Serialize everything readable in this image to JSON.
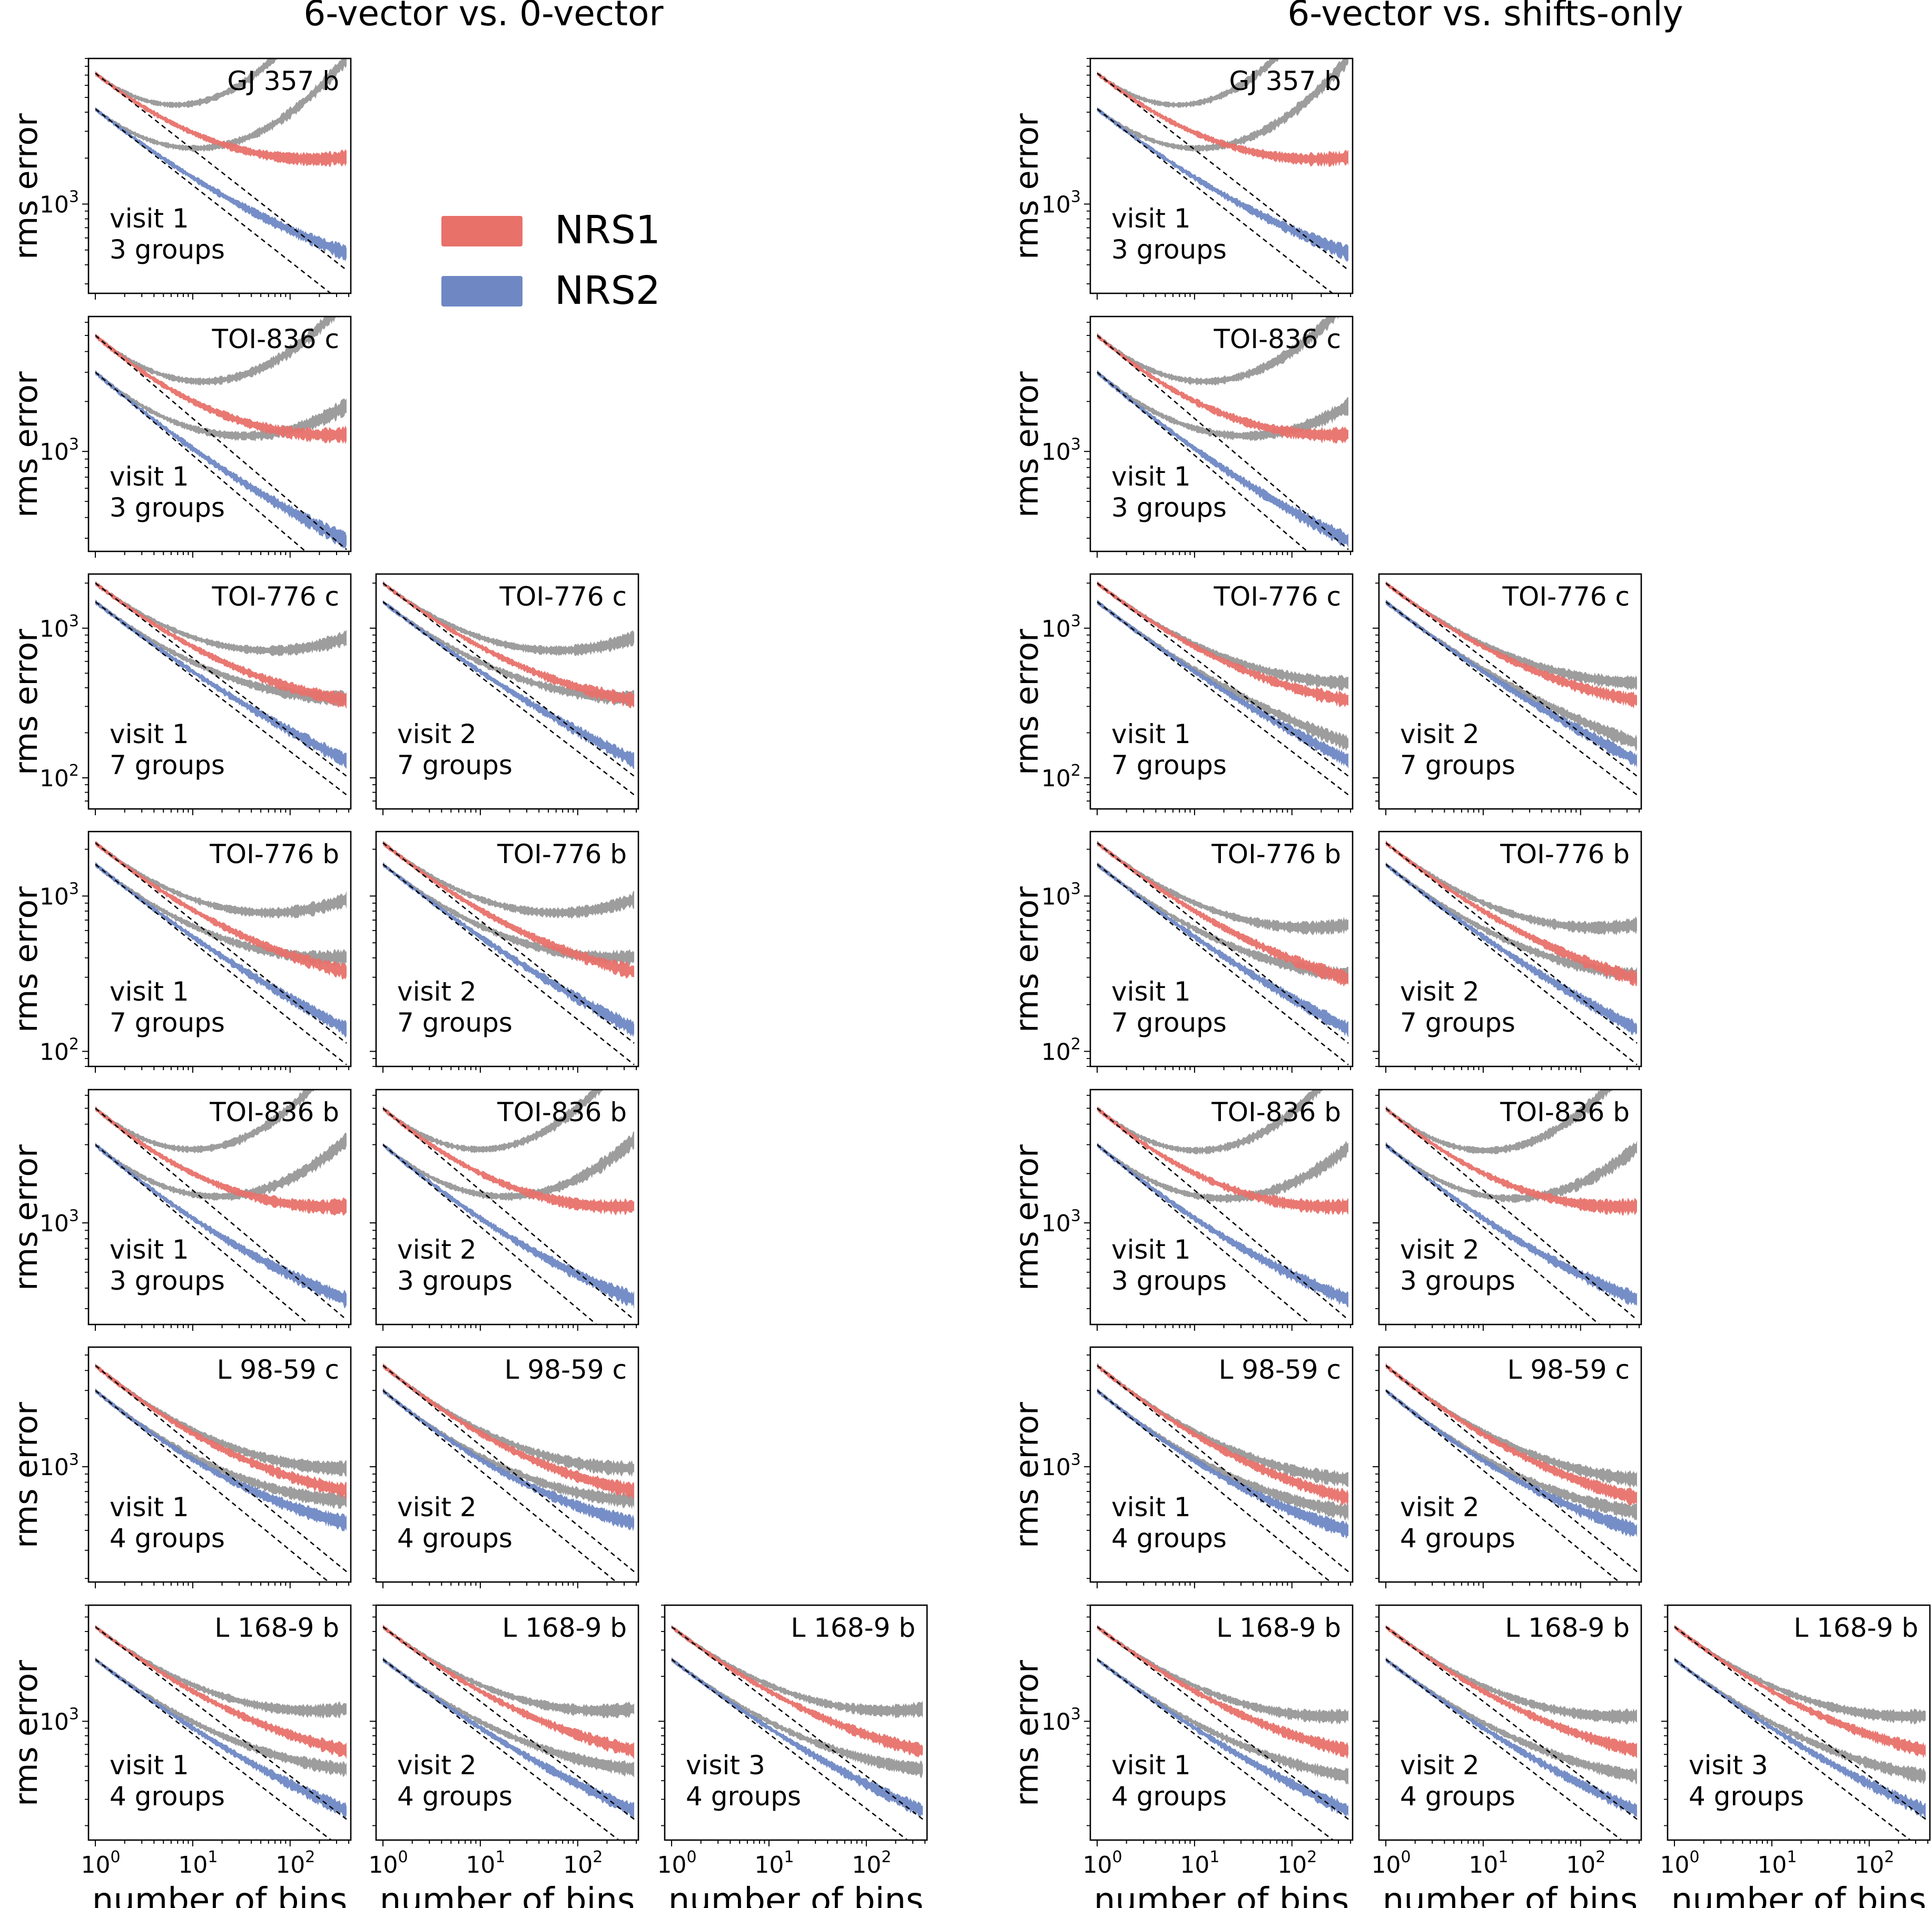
{
  "chart_data": {
    "type": "line",
    "figure_titles": [
      "6-vector vs. 0-vector",
      "6-vector vs. shifts-only"
    ],
    "ylabel": "rms error",
    "xlabel": "number of bins",
    "x_range": [
      1,
      400
    ],
    "x_scale": "log",
    "y_scale": "log",
    "x_ticks": [
      "10",
      "10",
      "10"
    ],
    "x_tick_exponents": [
      "0",
      "1",
      "2"
    ],
    "legend": [
      {
        "name": "NRS1",
        "color": "#e8716a"
      },
      {
        "name": "NRS2",
        "color": "#6f88c4"
      }
    ],
    "comparison_color": "#8c8c8c",
    "series_kind": [
      "rms error (6-vector)",
      "rms error (comparison)",
      "expected white-noise scaling"
    ],
    "rows": [
      {
        "target": "GJ 357 b",
        "y_ticks": [
          {
            "base": "10",
            "exp": "3",
            "value": 1000
          }
        ],
        "ylim": [
          260,
          9000
        ],
        "visits": [
          {
            "visit": "visit 1",
            "groups": "3 groups",
            "nrs1_start": 7200,
            "nrs2_start": 4200
          }
        ]
      },
      {
        "target": "TOI-836 c",
        "y_ticks": [
          {
            "base": "10",
            "exp": "3",
            "value": 1000
          }
        ],
        "ylim": [
          250,
          6500
        ],
        "visits": [
          {
            "visit": "visit 1",
            "groups": "3 groups",
            "nrs1_start": 5000,
            "nrs2_start": 3000
          }
        ]
      },
      {
        "target": "TOI-776 c",
        "y_ticks": [
          {
            "base": "10",
            "exp": "3",
            "value": 1000
          },
          {
            "base": "10",
            "exp": "2",
            "value": 100
          }
        ],
        "ylim": [
          62,
          2300
        ],
        "visits": [
          {
            "visit": "visit 1",
            "groups": "7 groups",
            "nrs1_start": 2000,
            "nrs2_start": 1500
          },
          {
            "visit": "visit 2",
            "groups": "7 groups",
            "nrs1_start": 2000,
            "nrs2_start": 1500
          }
        ]
      },
      {
        "target": "TOI-776 b",
        "y_ticks": [
          {
            "base": "10",
            "exp": "3",
            "value": 1000
          },
          {
            "base": "10",
            "exp": "2",
            "value": 100
          }
        ],
        "ylim": [
          80,
          2600
        ],
        "visits": [
          {
            "visit": "visit 1",
            "groups": "7 groups",
            "nrs1_start": 2200,
            "nrs2_start": 1600
          },
          {
            "visit": "visit 2",
            "groups": "7 groups",
            "nrs1_start": 2200,
            "nrs2_start": 1600
          }
        ]
      },
      {
        "target": "TOI-836 b",
        "y_ticks": [
          {
            "base": "10",
            "exp": "3",
            "value": 1000
          }
        ],
        "ylim": [
          240,
          6500
        ],
        "visits": [
          {
            "visit": "visit 1",
            "groups": "3 groups",
            "nrs1_start": 5000,
            "nrs2_start": 3000
          },
          {
            "visit": "visit 2",
            "groups": "3 groups",
            "nrs1_start": 5000,
            "nrs2_start": 3000
          }
        ]
      },
      {
        "target": "L 98-59 c",
        "y_ticks": [
          {
            "base": "10",
            "exp": "3",
            "value": 1000
          }
        ],
        "ylim": [
          190,
          5600
        ],
        "visits": [
          {
            "visit": "visit 1",
            "groups": "4 groups",
            "nrs1_start": 4300,
            "nrs2_start": 3000
          },
          {
            "visit": "visit 2",
            "groups": "4 groups",
            "nrs1_start": 4300,
            "nrs2_start": 3000
          }
        ]
      },
      {
        "target": "L 168-9 b",
        "y_ticks": [
          {
            "base": "10",
            "exp": "3",
            "value": 1000
          }
        ],
        "ylim": [
          160,
          6000
        ],
        "visits": [
          {
            "visit": "visit 1",
            "groups": "4 groups",
            "nrs1_start": 4300,
            "nrs2_start": 2600
          },
          {
            "visit": "visit 2",
            "groups": "4 groups",
            "nrs1_start": 4300,
            "nrs2_start": 2600
          },
          {
            "visit": "visit 3",
            "groups": "4 groups",
            "nrs1_start": 4300,
            "nrs2_start": 2600
          }
        ]
      }
    ]
  }
}
